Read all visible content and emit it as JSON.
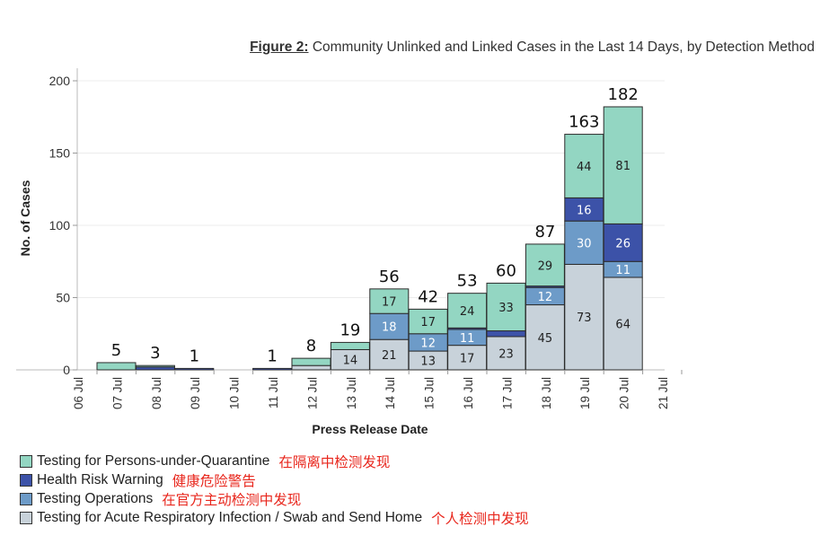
{
  "figure": {
    "label": "Figure 2:",
    "title": "Community Unlinked and Linked Cases in the Last 14 Days, by Detection Method"
  },
  "chart_data": {
    "type": "bar",
    "stacked": true,
    "xlabel": "Press Release Date",
    "ylabel": "No. of Cases",
    "ylim": [
      0,
      200
    ],
    "yticks": [
      0,
      50,
      100,
      150,
      200
    ],
    "x_tick_labels": [
      "06 Jul",
      "07 Jul",
      "08 Jul",
      "09 Jul",
      "10 Jul",
      "11 Jul",
      "12 Jul",
      "13 Jul",
      "14 Jul",
      "15 Jul",
      "16 Jul",
      "17 Jul",
      "18 Jul",
      "19 Jul",
      "20 Jul",
      "21 Jul"
    ],
    "categories": [
      "07 Jul",
      "08 Jul",
      "09 Jul",
      "10 Jul",
      "11 Jul",
      "12 Jul",
      "13 Jul",
      "14 Jul",
      "15 Jul",
      "16 Jul",
      "17 Jul",
      "18 Jul",
      "19 Jul",
      "20 Jul"
    ],
    "totals": [
      5,
      3,
      1,
      null,
      1,
      8,
      19,
      56,
      42,
      53,
      60,
      87,
      163,
      182
    ],
    "series": [
      {
        "name": "Testing for Acute Respiratory Infection / Swab and Send Home",
        "color": "#c8d2da",
        "values": [
          0,
          0,
          0,
          0,
          0,
          3,
          14,
          21,
          13,
          17,
          23,
          45,
          73,
          64
        ]
      },
      {
        "name": "Testing Operations",
        "color": "#6d9bc8",
        "values": [
          0,
          0,
          0,
          0,
          0,
          0,
          0,
          18,
          12,
          11,
          0,
          12,
          30,
          11
        ]
      },
      {
        "name": "Health Risk Warning",
        "color": "#3c52a8",
        "values": [
          0,
          2,
          1,
          0,
          1,
          0,
          0,
          0,
          0,
          1,
          4,
          1,
          16,
          26
        ]
      },
      {
        "name": "Testing for Persons-under-Quarantine",
        "color": "#93d6c2",
        "values": [
          5,
          1,
          0,
          0,
          0,
          5,
          5,
          17,
          17,
          24,
          33,
          29,
          44,
          81
        ]
      }
    ],
    "grid": true
  },
  "legend": [
    {
      "label": "Testing for Persons-under-Quarantine",
      "cn": "在隔离中检测发现",
      "color": "#93d6c2"
    },
    {
      "label": "Health Risk Warning",
      "cn": "健康危险警告",
      "color": "#3c52a8"
    },
    {
      "label": "Testing Operations",
      "cn": "在官方主动检测中发现",
      "color": "#6d9bc8"
    },
    {
      "label": "Testing for Acute Respiratory Infection / Swab and Send Home",
      "cn": "个人检测中发现",
      "color": "#c8d2da"
    }
  ]
}
